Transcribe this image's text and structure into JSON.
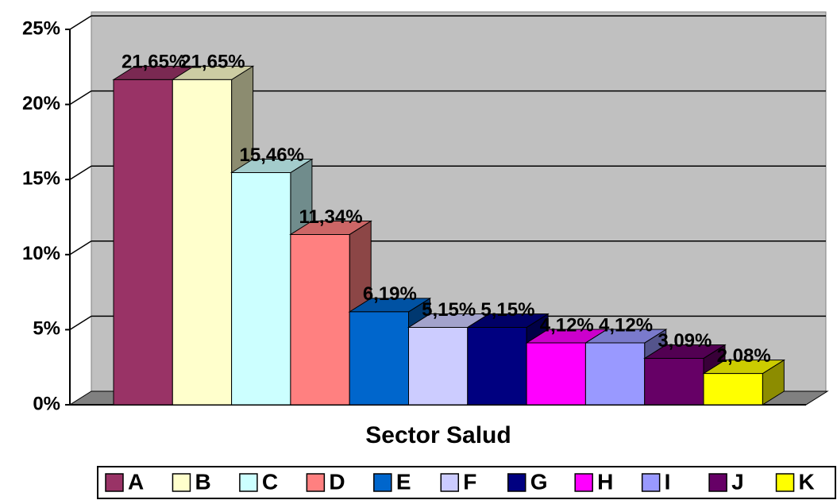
{
  "chart_data": {
    "type": "bar",
    "x_label": "Sector Salud",
    "series": [
      {
        "name": "A",
        "color": "#993366",
        "values": [
          21.65
        ],
        "value_labels": [
          "21,65%"
        ]
      },
      {
        "name": "B",
        "color": "#FFFFCC",
        "values": [
          21.65
        ],
        "value_labels": [
          "21,65%"
        ]
      },
      {
        "name": "C",
        "color": "#CCFFFF",
        "values": [
          15.46
        ],
        "value_labels": [
          "15,46%"
        ]
      },
      {
        "name": "D",
        "color": "#FF8080",
        "values": [
          11.34
        ],
        "value_labels": [
          "11,34%"
        ]
      },
      {
        "name": "E",
        "color": "#0066CC",
        "values": [
          6.19
        ],
        "value_labels": [
          "6,19%"
        ]
      },
      {
        "name": "F",
        "color": "#CCCCFF",
        "values": [
          5.15
        ],
        "value_labels": [
          "5,15%"
        ]
      },
      {
        "name": "G",
        "color": "#000080",
        "values": [
          5.15
        ],
        "value_labels": [
          "5,15%"
        ]
      },
      {
        "name": "H",
        "color": "#FF00FF",
        "values": [
          4.12
        ],
        "value_labels": [
          "4,12%"
        ]
      },
      {
        "name": "I",
        "color": "#9999FF",
        "values": [
          4.12
        ],
        "value_labels": [
          "4,12%"
        ]
      },
      {
        "name": "J",
        "color": "#660066",
        "values": [
          3.09
        ],
        "value_labels": [
          "3,09%"
        ]
      },
      {
        "name": "K",
        "color": "#FFFF00",
        "values": [
          2.08
        ],
        "value_labels": [
          "2,08%"
        ]
      }
    ],
    "ylim": [
      0,
      25
    ],
    "yticks": [
      {
        "value": 0,
        "label": "0%"
      },
      {
        "value": 5,
        "label": "5%"
      },
      {
        "value": 10,
        "label": "10%"
      },
      {
        "value": 15,
        "label": "15%"
      },
      {
        "value": 20,
        "label": "20%"
      },
      {
        "value": 25,
        "label": "25%"
      }
    ],
    "grid": true,
    "legend": "bottom"
  }
}
